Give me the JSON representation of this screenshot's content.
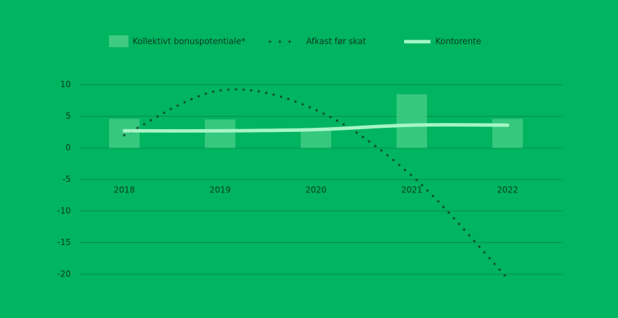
{
  "chart_data": {
    "type": "bar-line",
    "categories": [
      "2018",
      "2019",
      "2020",
      "2021",
      "2022"
    ],
    "series": [
      {
        "name": "Kollektivt bonuspotentiale*",
        "type": "bar",
        "color": "#3fcb82",
        "values": [
          4.6,
          4.5,
          3.1,
          8.5,
          4.6
        ]
      },
      {
        "name": "Afkast før skat",
        "type": "dotted-line",
        "color": "#14532f",
        "values": [
          2.0,
          9.1,
          6.0,
          -4.4,
          -20.7
        ]
      },
      {
        "name": "Kontorente",
        "type": "line",
        "color": "#a6f5c6",
        "values": [
          2.7,
          2.7,
          2.9,
          3.6,
          3.6
        ]
      }
    ],
    "ylim": [
      -21,
      10
    ],
    "yticks": [
      10,
      5,
      0,
      -5,
      -10,
      -15,
      -20
    ],
    "grid": true
  }
}
